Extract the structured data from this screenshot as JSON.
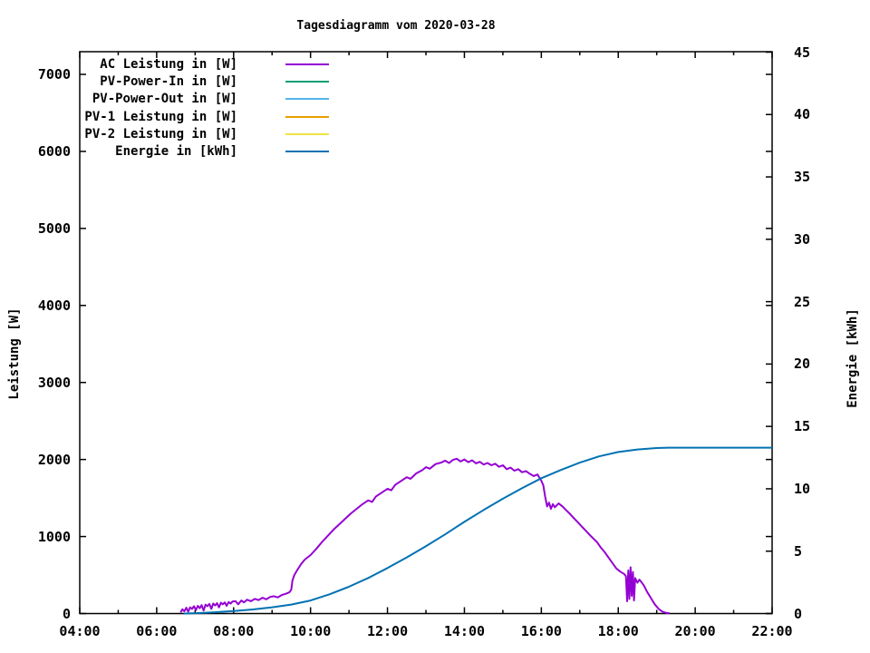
{
  "chart_data": {
    "type": "line",
    "title": "Tagesdiagramm vom 2020-03-28",
    "x_axis": {
      "label": "",
      "range_hours": [
        4,
        22
      ],
      "major_tick_hours": 2,
      "minor_tick_hours": 1,
      "ticks": [
        [
          4,
          "04:00"
        ],
        [
          5,
          null
        ],
        [
          6,
          "06:00"
        ],
        [
          7,
          null
        ],
        [
          8,
          "08:00"
        ],
        [
          9,
          null
        ],
        [
          10,
          "10:00"
        ],
        [
          11,
          null
        ],
        [
          12,
          "12:00"
        ],
        [
          13,
          null
        ],
        [
          14,
          "14:00"
        ],
        [
          15,
          null
        ],
        [
          16,
          "16:00"
        ],
        [
          17,
          null
        ],
        [
          18,
          "18:00"
        ],
        [
          19,
          null
        ],
        [
          20,
          "20:00"
        ],
        [
          21,
          null
        ],
        [
          22,
          "22:00"
        ]
      ]
    },
    "y1_axis": {
      "label": "Leistung [W]",
      "range": [
        0,
        7294
      ],
      "tick_step": 1000,
      "ticks": [
        [
          0,
          "0"
        ],
        [
          1000,
          "1000"
        ],
        [
          2000,
          "2000"
        ],
        [
          3000,
          "3000"
        ],
        [
          4000,
          "4000"
        ],
        [
          5000,
          "5000"
        ],
        [
          6000,
          "6000"
        ],
        [
          7000,
          "7000"
        ]
      ]
    },
    "y2_axis": {
      "label": "Energie [kWh]",
      "range": [
        0,
        45
      ],
      "tick_step": 5,
      "ticks": [
        [
          0,
          "0"
        ],
        [
          5,
          "5"
        ],
        [
          10,
          "10"
        ],
        [
          15,
          "15"
        ],
        [
          20,
          "20"
        ],
        [
          25,
          "25"
        ],
        [
          30,
          "30"
        ],
        [
          35,
          "35"
        ],
        [
          40,
          "40"
        ],
        [
          45,
          "45"
        ]
      ]
    },
    "legend_position": "top-left-inside",
    "grid": false,
    "series": [
      {
        "name": "ac-leistung",
        "legend_label": "AC Leistung in [W]",
        "color": "#9400d3",
        "axis": "y1",
        "points": [
          [
            6.62,
            15
          ],
          [
            6.67,
            55
          ],
          [
            6.72,
            30
          ],
          [
            6.77,
            75
          ],
          [
            6.82,
            25
          ],
          [
            6.87,
            80
          ],
          [
            6.92,
            60
          ],
          [
            6.97,
            95
          ],
          [
            7.02,
            45
          ],
          [
            7.07,
            100
          ],
          [
            7.12,
            70
          ],
          [
            7.17,
            110
          ],
          [
            7.22,
            40
          ],
          [
            7.27,
            115
          ],
          [
            7.32,
            95
          ],
          [
            7.37,
            125
          ],
          [
            7.42,
            60
          ],
          [
            7.47,
            130
          ],
          [
            7.52,
            105
          ],
          [
            7.57,
            135
          ],
          [
            7.62,
            80
          ],
          [
            7.67,
            140
          ],
          [
            7.72,
            120
          ],
          [
            7.77,
            145
          ],
          [
            7.82,
            100
          ],
          [
            7.87,
            150
          ],
          [
            7.92,
            130
          ],
          [
            7.97,
            155
          ],
          [
            8.05,
            160
          ],
          [
            8.12,
            120
          ],
          [
            8.2,
            170
          ],
          [
            8.27,
            145
          ],
          [
            8.35,
            180
          ],
          [
            8.45,
            160
          ],
          [
            8.55,
            190
          ],
          [
            8.65,
            175
          ],
          [
            8.75,
            205
          ],
          [
            8.85,
            185
          ],
          [
            8.95,
            215
          ],
          [
            9.05,
            225
          ],
          [
            9.15,
            210
          ],
          [
            9.25,
            240
          ],
          [
            9.35,
            255
          ],
          [
            9.45,
            275
          ],
          [
            9.5,
            310
          ],
          [
            9.53,
            430
          ],
          [
            9.58,
            500
          ],
          [
            9.65,
            560
          ],
          [
            9.75,
            640
          ],
          [
            9.85,
            700
          ],
          [
            10.0,
            760
          ],
          [
            10.15,
            840
          ],
          [
            10.3,
            930
          ],
          [
            10.45,
            1010
          ],
          [
            10.6,
            1090
          ],
          [
            10.75,
            1160
          ],
          [
            10.9,
            1230
          ],
          [
            11.05,
            1300
          ],
          [
            11.2,
            1360
          ],
          [
            11.35,
            1420
          ],
          [
            11.5,
            1470
          ],
          [
            11.6,
            1450
          ],
          [
            11.7,
            1520
          ],
          [
            11.85,
            1570
          ],
          [
            12.0,
            1620
          ],
          [
            12.1,
            1600
          ],
          [
            12.2,
            1670
          ],
          [
            12.35,
            1720
          ],
          [
            12.5,
            1770
          ],
          [
            12.6,
            1750
          ],
          [
            12.75,
            1820
          ],
          [
            12.9,
            1860
          ],
          [
            13.0,
            1900
          ],
          [
            13.1,
            1880
          ],
          [
            13.25,
            1940
          ],
          [
            13.4,
            1960
          ],
          [
            13.5,
            1985
          ],
          [
            13.6,
            1955
          ],
          [
            13.7,
            1995
          ],
          [
            13.8,
            2010
          ],
          [
            13.9,
            1975
          ],
          [
            14.0,
            2000
          ],
          [
            14.1,
            1965
          ],
          [
            14.2,
            1990
          ],
          [
            14.3,
            1950
          ],
          [
            14.4,
            1970
          ],
          [
            14.5,
            1935
          ],
          [
            14.6,
            1955
          ],
          [
            14.7,
            1925
          ],
          [
            14.8,
            1945
          ],
          [
            14.9,
            1905
          ],
          [
            15.0,
            1925
          ],
          [
            15.1,
            1875
          ],
          [
            15.2,
            1895
          ],
          [
            15.3,
            1855
          ],
          [
            15.4,
            1875
          ],
          [
            15.5,
            1835
          ],
          [
            15.6,
            1850
          ],
          [
            15.7,
            1815
          ],
          [
            15.8,
            1785
          ],
          [
            15.9,
            1805
          ],
          [
            16.0,
            1725
          ],
          [
            16.05,
            1665
          ],
          [
            16.1,
            1515
          ],
          [
            16.15,
            1390
          ],
          [
            16.2,
            1440
          ],
          [
            16.25,
            1360
          ],
          [
            16.3,
            1420
          ],
          [
            16.35,
            1380
          ],
          [
            16.45,
            1430
          ],
          [
            16.55,
            1390
          ],
          [
            16.65,
            1340
          ],
          [
            16.75,
            1290
          ],
          [
            16.85,
            1235
          ],
          [
            16.95,
            1185
          ],
          [
            17.05,
            1130
          ],
          [
            17.15,
            1080
          ],
          [
            17.25,
            1025
          ],
          [
            17.35,
            975
          ],
          [
            17.45,
            925
          ],
          [
            17.55,
            855
          ],
          [
            17.65,
            795
          ],
          [
            17.75,
            725
          ],
          [
            17.85,
            655
          ],
          [
            17.95,
            585
          ],
          [
            18.05,
            545
          ],
          [
            18.15,
            515
          ],
          [
            18.2,
            485
          ],
          [
            18.23,
            160
          ],
          [
            18.26,
            560
          ],
          [
            18.29,
            190
          ],
          [
            18.32,
            600
          ],
          [
            18.35,
            230
          ],
          [
            18.38,
            540
          ],
          [
            18.41,
            170
          ],
          [
            18.44,
            460
          ],
          [
            18.5,
            400
          ],
          [
            18.55,
            440
          ],
          [
            18.6,
            410
          ],
          [
            18.67,
            360
          ],
          [
            18.75,
            280
          ],
          [
            18.85,
            200
          ],
          [
            18.95,
            120
          ],
          [
            19.05,
            60
          ],
          [
            19.15,
            25
          ],
          [
            19.25,
            8
          ],
          [
            19.33,
            2
          ]
        ]
      },
      {
        "name": "pv-power-in",
        "legend_label": "PV-Power-In in [W]",
        "color": "#009e73",
        "axis": "y1",
        "points": []
      },
      {
        "name": "pv-power-out",
        "legend_label": "PV-Power-Out in [W]",
        "color": "#56b4e9",
        "axis": "y1",
        "points": []
      },
      {
        "name": "pv1-leistung",
        "legend_label": "PV-1 Leistung in [W]",
        "color": "#e69f00",
        "axis": "y1",
        "points": []
      },
      {
        "name": "pv2-leistung",
        "legend_label": "PV-2 Leistung in [W]",
        "color": "#f0e442",
        "axis": "y1",
        "points": []
      },
      {
        "name": "energie",
        "legend_label": "Energie in [kWh]",
        "color": "#0072b2",
        "axis": "y2",
        "points": [
          [
            6.7,
            0
          ],
          [
            7.0,
            0.03
          ],
          [
            7.5,
            0.1
          ],
          [
            8.0,
            0.2
          ],
          [
            8.5,
            0.33
          ],
          [
            9.0,
            0.5
          ],
          [
            9.5,
            0.72
          ],
          [
            10.0,
            1.05
          ],
          [
            10.5,
            1.55
          ],
          [
            11.0,
            2.15
          ],
          [
            11.5,
            2.85
          ],
          [
            12.0,
            3.65
          ],
          [
            12.5,
            4.5
          ],
          [
            13.0,
            5.4
          ],
          [
            13.5,
            6.35
          ],
          [
            14.0,
            7.35
          ],
          [
            14.5,
            8.3
          ],
          [
            15.0,
            9.2
          ],
          [
            15.5,
            10.05
          ],
          [
            16.0,
            10.85
          ],
          [
            16.5,
            11.5
          ],
          [
            17.0,
            12.1
          ],
          [
            17.5,
            12.6
          ],
          [
            18.0,
            12.95
          ],
          [
            18.5,
            13.15
          ],
          [
            19.0,
            13.27
          ],
          [
            19.3,
            13.3
          ],
          [
            20.0,
            13.3
          ],
          [
            21.0,
            13.3
          ],
          [
            22.0,
            13.3
          ]
        ]
      }
    ]
  }
}
